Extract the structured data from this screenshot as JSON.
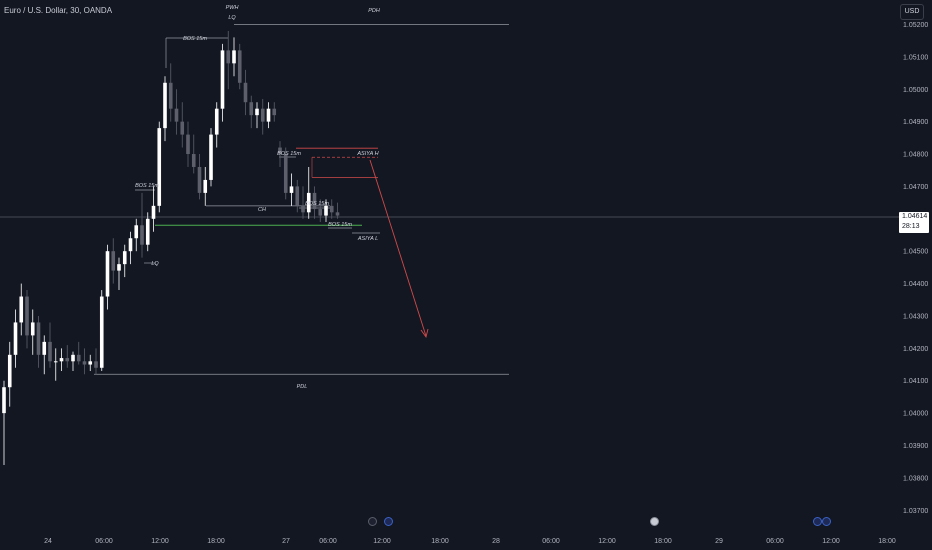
{
  "header": {
    "symbol_title": "Euro / U.S. Dollar, 30, OANDA",
    "currency_button": "USD"
  },
  "current_price": {
    "value": "1.04614",
    "countdown": "28:13"
  },
  "colors": {
    "background": "#131722",
    "up_candle": "#ffffff",
    "down_candle": "#5d606b",
    "axis_text": "#b2b5be",
    "level_line": "#9598a1",
    "zone": "#d14a4a",
    "support": "#4caf50",
    "arrow": "#d14a4a"
  },
  "chart_data": {
    "type": "candlestick",
    "y_axis": {
      "ticks": [
        "1.05200",
        "1.05100",
        "1.05000",
        "1.04900",
        "1.04800",
        "1.04700",
        "1.04600",
        "1.04500",
        "1.04400",
        "1.04300",
        "1.04200",
        "1.04100",
        "1.04000",
        "1.03900",
        "1.03800",
        "1.03700"
      ],
      "range": [
        1.0367,
        1.0522
      ]
    },
    "x_axis": {
      "ticks": [
        "24",
        "06:00",
        "12:00",
        "18:00",
        "27",
        "06:00",
        "12:00",
        "18:00",
        "28",
        "06:00",
        "12:00",
        "18:00",
        "29",
        "06:00",
        "12:00",
        "18:00"
      ]
    },
    "candles": [
      [
        1.04,
        1.041,
        1.0384,
        1.0408
      ],
      [
        1.0408,
        1.0422,
        1.0402,
        1.0418
      ],
      [
        1.0418,
        1.0432,
        1.0414,
        1.0428
      ],
      [
        1.0428,
        1.044,
        1.0424,
        1.0436
      ],
      [
        1.0436,
        1.0438,
        1.042,
        1.0424
      ],
      [
        1.0424,
        1.0432,
        1.0418,
        1.0428
      ],
      [
        1.0428,
        1.043,
        1.0414,
        1.0418
      ],
      [
        1.0418,
        1.0424,
        1.0412,
        1.0422
      ],
      [
        1.0422,
        1.0428,
        1.0414,
        1.0416
      ],
      [
        1.0416,
        1.042,
        1.041,
        1.0416
      ],
      [
        1.0416,
        1.042,
        1.0413,
        1.0417
      ],
      [
        1.0417,
        1.0421,
        1.0414,
        1.0416
      ],
      [
        1.0416,
        1.0419,
        1.0413,
        1.0418
      ],
      [
        1.0418,
        1.0422,
        1.0415,
        1.0416
      ],
      [
        1.0416,
        1.042,
        1.0412,
        1.0415
      ],
      [
        1.0415,
        1.0418,
        1.0413,
        1.0416
      ],
      [
        1.0416,
        1.042,
        1.0412,
        1.0414
      ],
      [
        1.0414,
        1.0438,
        1.0413,
        1.0436
      ],
      [
        1.0436,
        1.0452,
        1.0432,
        1.045
      ],
      [
        1.045,
        1.0454,
        1.044,
        1.0444
      ],
      [
        1.0444,
        1.0448,
        1.0438,
        1.0446
      ],
      [
        1.0446,
        1.0452,
        1.0442,
        1.045
      ],
      [
        1.045,
        1.0456,
        1.0446,
        1.0454
      ],
      [
        1.0454,
        1.046,
        1.045,
        1.0458
      ],
      [
        1.0458,
        1.0468,
        1.0448,
        1.0452
      ],
      [
        1.0452,
        1.0462,
        1.045,
        1.046
      ],
      [
        1.046,
        1.047,
        1.0456,
        1.0464
      ],
      [
        1.0464,
        1.049,
        1.0462,
        1.0488
      ],
      [
        1.0488,
        1.0504,
        1.0484,
        1.0502
      ],
      [
        1.0502,
        1.0508,
        1.049,
        1.0494
      ],
      [
        1.0494,
        1.05,
        1.0486,
        1.049
      ],
      [
        1.049,
        1.0496,
        1.0482,
        1.0486
      ],
      [
        1.0486,
        1.049,
        1.0476,
        1.048
      ],
      [
        1.048,
        1.0486,
        1.0474,
        1.0476
      ],
      [
        1.0476,
        1.048,
        1.0466,
        1.0468
      ],
      [
        1.0468,
        1.0476,
        1.0464,
        1.0472
      ],
      [
        1.0472,
        1.0488,
        1.047,
        1.0486
      ],
      [
        1.0486,
        1.0496,
        1.0482,
        1.0494
      ],
      [
        1.0494,
        1.0514,
        1.049,
        1.0512
      ],
      [
        1.0512,
        1.0518,
        1.05,
        1.0508
      ],
      [
        1.0508,
        1.0516,
        1.0504,
        1.0512
      ],
      [
        1.0512,
        1.0514,
        1.05,
        1.0502
      ],
      [
        1.0502,
        1.0506,
        1.0492,
        1.0496
      ],
      [
        1.0496,
        1.0498,
        1.0488,
        1.0492
      ],
      [
        1.0492,
        1.0496,
        1.0488,
        1.0494
      ],
      [
        1.0494,
        1.0497,
        1.0486,
        1.049
      ],
      [
        1.049,
        1.0496,
        1.0488,
        1.0494
      ],
      [
        1.0494,
        1.0496,
        1.049,
        1.0492
      ],
      [
        1.0482,
        1.0484,
        1.0476,
        1.048
      ],
      [
        1.048,
        1.0482,
        1.0466,
        1.0468
      ],
      [
        1.0468,
        1.0474,
        1.0464,
        1.047
      ],
      [
        1.047,
        1.0472,
        1.0462,
        1.0464
      ],
      [
        1.0464,
        1.047,
        1.046,
        1.0462
      ],
      [
        1.0462,
        1.0476,
        1.046,
        1.0468
      ],
      [
        1.0468,
        1.047,
        1.046,
        1.0463
      ],
      [
        1.0463,
        1.0466,
        1.0459,
        1.0461
      ],
      [
        1.0461,
        1.0466,
        1.0459,
        1.0464
      ],
      [
        1.0464,
        1.0466,
        1.046,
        1.0462
      ],
      [
        1.0462,
        1.0465,
        1.046,
        1.0461
      ]
    ],
    "annotations": {
      "labels": [
        "PWH",
        "LQ",
        "PDH",
        "BOS 15m",
        "BOS 15m",
        "BOS 15m",
        "BOS 15m",
        "BOS 15m",
        "CH",
        "LQ",
        "ASIYA H",
        "ASIYA L",
        "PDL"
      ],
      "levels": {
        "pdh": 1.052,
        "pdl": 1.0412,
        "ch": 1.0464,
        "support": 1.0458,
        "zone_top": 1.04818,
        "zone_bottom": 1.04728,
        "zone_mid": 1.0479
      }
    },
    "grid": false,
    "legend": "none"
  }
}
